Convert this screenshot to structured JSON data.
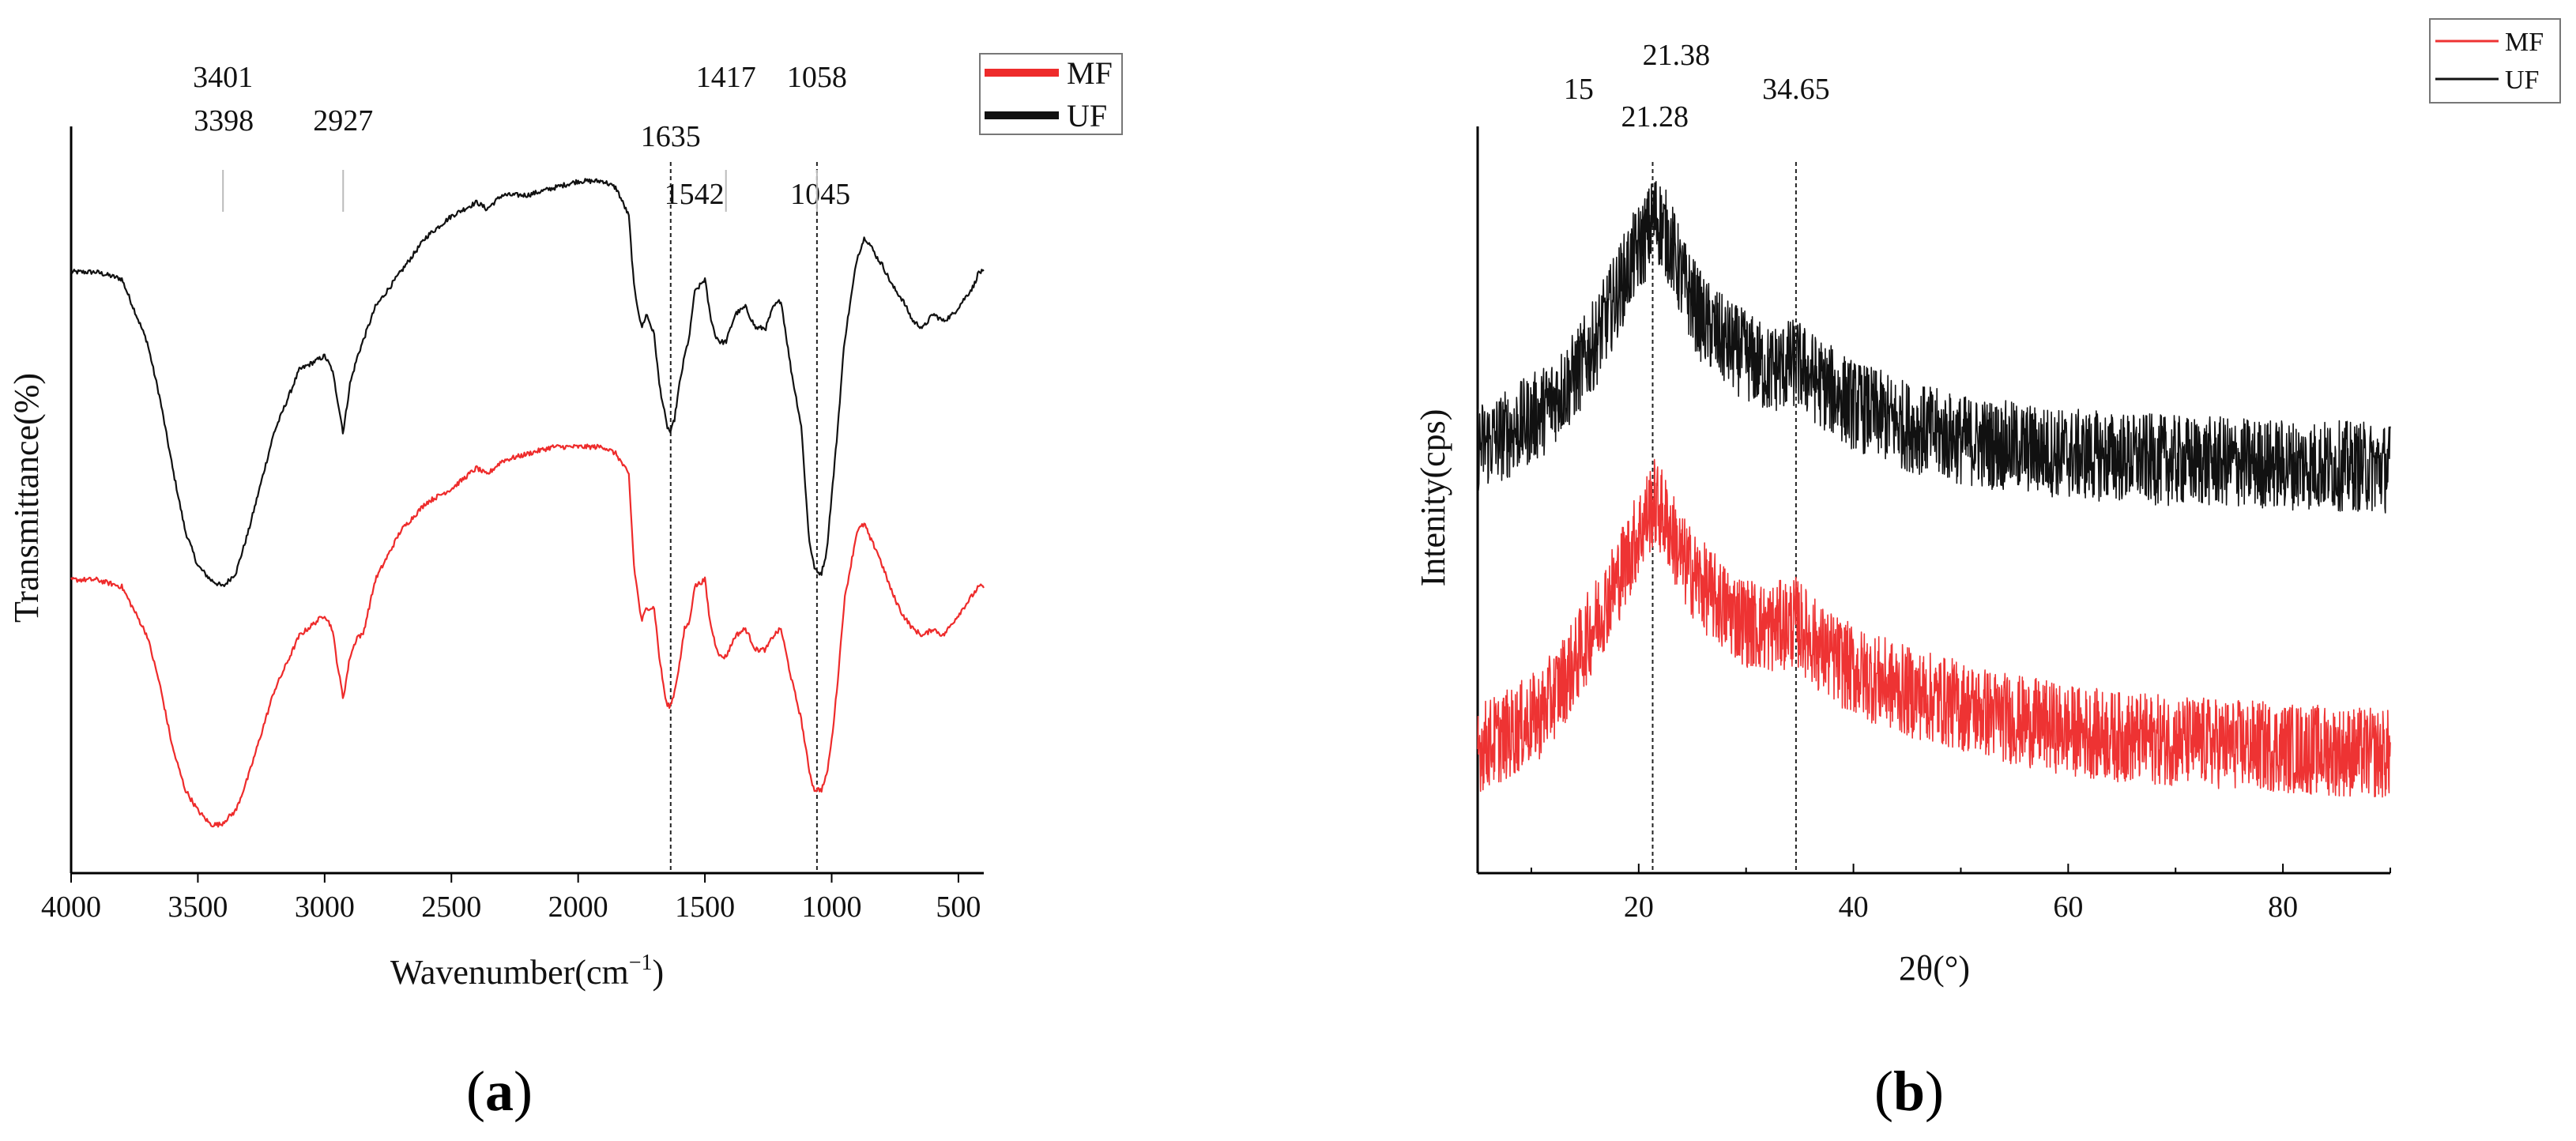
{
  "chart_data": [
    {
      "type": "line",
      "panel": "(a)",
      "panel_label_open": "(",
      "panel_label_letter": "a",
      "panel_label_close": ")",
      "xlabel": "Wavenumber(cm",
      "xlabel_sup": "−1",
      "xlabel_close": ")",
      "ylabel": "Transmittance(%)",
      "xlim": [
        4000,
        400
      ],
      "xticks": [
        "4000",
        "3500",
        "3000",
        "2500",
        "2000",
        "1500",
        "1000",
        "500"
      ],
      "xtick_values": [
        4000,
        3500,
        3000,
        2500,
        2000,
        1500,
        1000,
        500
      ],
      "ylim": [
        0,
        100
      ],
      "legend": {
        "entries": [
          "MF",
          "UF"
        ],
        "placement": "top-right"
      },
      "annotations": [
        {
          "text": "3401",
          "x": 3401,
          "row": 1
        },
        {
          "text": "3398",
          "x": 3398,
          "row": 2
        },
        {
          "text": "2927",
          "x": 2927,
          "row": 2
        },
        {
          "text": "1635",
          "x": 1635,
          "row": 3
        },
        {
          "text": "1417",
          "x": 1417,
          "row": 1
        },
        {
          "text": "1542",
          "x": 1542,
          "row": 4
        },
        {
          "text": "1058",
          "x": 1058,
          "row": 1
        },
        {
          "text": "1045",
          "x": 1045,
          "row": 4
        }
      ],
      "dashed_lines": [
        1635,
        1058
      ],
      "series": [
        {
          "name": "UF",
          "color": "#111111",
          "x": [
            4000,
            3900,
            3800,
            3700,
            3650,
            3600,
            3550,
            3500,
            3450,
            3401,
            3350,
            3300,
            3200,
            3100,
            3000,
            2970,
            2950,
            2927,
            2900,
            2870,
            2850,
            2800,
            2700,
            2600,
            2500,
            2400,
            2360,
            2300,
            2200,
            2100,
            2000,
            1950,
            1900,
            1850,
            1800,
            1780,
            1750,
            1730,
            1700,
            1680,
            1660,
            1650,
            1635,
            1620,
            1600,
            1580,
            1560,
            1542,
            1500,
            1480,
            1460,
            1440,
            1417,
            1380,
            1340,
            1300,
            1260,
            1230,
            1200,
            1160,
            1120,
            1090,
            1070,
            1058,
            1040,
            1020,
            1000,
            980,
            950,
            900,
            870,
            850,
            820,
            800,
            760,
            720,
            680,
            640,
            600,
            560,
            520,
            480,
            440,
            420
          ],
          "y": [
            82,
            82,
            81,
            72,
            64,
            54,
            45,
            40,
            38,
            37,
            39,
            45,
            59,
            68,
            70,
            68,
            64,
            59,
            66,
            70,
            72,
            77,
            82,
            87,
            90,
            92,
            91,
            93,
            93,
            94,
            95,
            95,
            95,
            94,
            90,
            80,
            74,
            76,
            73,
            66,
            62,
            60,
            59,
            61,
            66,
            70,
            73,
            79,
            81,
            76,
            73,
            72,
            72,
            76,
            77,
            74,
            74,
            77,
            78,
            68,
            60,
            44,
            40,
            39,
            39,
            42,
            50,
            58,
            72,
            84,
            87,
            86,
            84,
            83,
            80,
            78,
            75,
            74,
            76,
            75,
            76,
            78,
            80,
            82
          ]
        },
        {
          "name": "MF",
          "color": "#ee2b2b",
          "x": [
            4000,
            3900,
            3800,
            3700,
            3650,
            3600,
            3550,
            3500,
            3450,
            3410,
            3350,
            3300,
            3200,
            3100,
            3000,
            2970,
            2950,
            2927,
            2900,
            2870,
            2850,
            2800,
            2700,
            2600,
            2500,
            2400,
            2360,
            2300,
            2200,
            2100,
            2000,
            1950,
            1900,
            1850,
            1800,
            1780,
            1750,
            1730,
            1700,
            1680,
            1660,
            1650,
            1635,
            1620,
            1600,
            1580,
            1560,
            1542,
            1500,
            1480,
            1460,
            1440,
            1417,
            1380,
            1340,
            1300,
            1260,
            1230,
            1200,
            1160,
            1120,
            1090,
            1070,
            1058,
            1040,
            1020,
            1000,
            980,
            950,
            900,
            870,
            850,
            820,
            800,
            760,
            720,
            680,
            640,
            600,
            560,
            520,
            480,
            440,
            420
          ],
          "y": [
            38,
            38,
            37,
            30,
            23,
            14,
            8,
            5,
            3,
            3,
            5,
            10,
            22,
            30,
            33,
            31,
            26,
            21,
            27,
            30,
            30,
            38,
            45,
            49,
            51,
            54,
            53,
            55,
            56,
            57,
            57,
            57,
            57,
            56,
            53,
            40,
            32,
            34,
            34,
            27,
            22,
            20,
            20,
            22,
            26,
            31,
            32,
            37,
            38,
            32,
            29,
            27,
            27,
            30,
            31,
            28,
            28,
            30,
            31,
            24,
            18,
            11,
            8,
            8,
            8,
            10,
            15,
            22,
            35,
            45,
            46,
            44,
            42,
            40,
            36,
            33,
            31,
            30,
            31,
            30,
            32,
            34,
            36,
            37
          ]
        }
      ]
    },
    {
      "type": "line",
      "panel": "(b)",
      "panel_label_open": "(",
      "panel_label_letter": "b",
      "panel_label_close": ")",
      "xlabel": "2θ(°)",
      "ylabel": "Intenity(cps)",
      "xlim": [
        5,
        90
      ],
      "xticks": [
        "20",
        "40",
        "60",
        "80"
      ],
      "xtick_values": [
        20,
        40,
        60,
        80
      ],
      "ylim": [
        0,
        100
      ],
      "legend": {
        "entries": [
          "MF",
          "UF"
        ],
        "placement": "top-right"
      },
      "annotations": [
        {
          "text": "21.38",
          "x": 21.38,
          "row": 1
        },
        {
          "text": "15",
          "x": 15,
          "row": 2
        },
        {
          "text": "34.65",
          "x": 34.65,
          "row": 2
        },
        {
          "text": "21.28",
          "x": 21.28,
          "row": 3
        }
      ],
      "dashed_lines": [
        21.3,
        34.65
      ],
      "series": [
        {
          "name": "UF",
          "color": "#111111",
          "x": [
            5,
            8,
            11,
            14,
            16,
            18,
            19.5,
            21,
            21.4,
            22,
            23,
            24,
            26,
            28,
            30,
            32,
            34.65,
            37,
            40,
            45,
            50,
            55,
            60,
            65,
            70,
            75,
            80,
            85,
            90
          ],
          "y": [
            57,
            59,
            62,
            67,
            72,
            79,
            84,
            88,
            90,
            89,
            86,
            81,
            75,
            72,
            70,
            68,
            69,
            66,
            63,
            60,
            58,
            57,
            56,
            55.5,
            55,
            54.8,
            54.5,
            54.3,
            54
          ]
        },
        {
          "name": "MF",
          "color": "#ee3333",
          "x": [
            5,
            8,
            11,
            14,
            16,
            18,
            19.5,
            21,
            21.4,
            22,
            23,
            24,
            26,
            28,
            30,
            32,
            34.65,
            37,
            40,
            45,
            50,
            55,
            60,
            65,
            70,
            75,
            80,
            85,
            90
          ],
          "y": [
            14,
            16,
            19,
            26,
            32,
            38,
            43,
            48,
            49,
            48,
            45,
            41,
            37,
            34,
            32,
            31,
            32,
            28,
            25,
            22,
            20,
            18,
            16.5,
            15.5,
            15,
            14.5,
            14,
            13.5,
            13
          ]
        }
      ]
    }
  ]
}
